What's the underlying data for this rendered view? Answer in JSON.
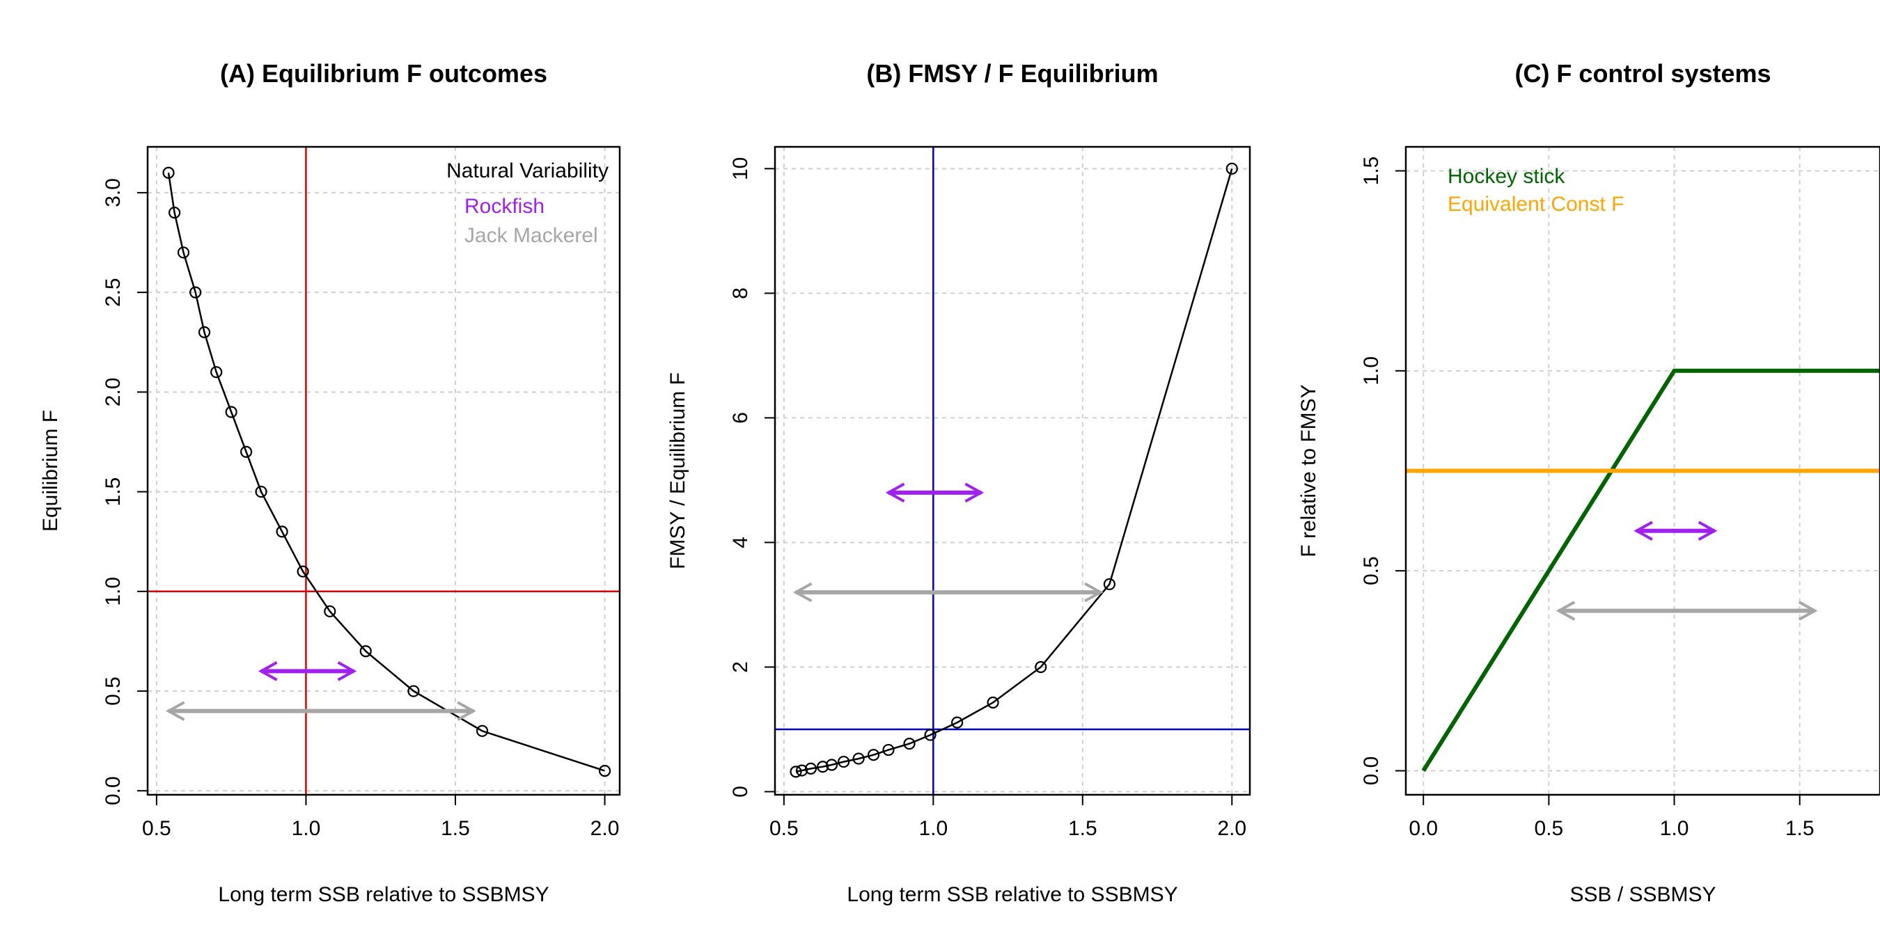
{
  "chart_data": [
    {
      "type": "line",
      "title": "(A) Equilibrium F outcomes",
      "xlabel": "Long term SSB relative to SSBMSY",
      "ylabel": "Equilibrium F",
      "xlim": [
        0.47,
        2.05
      ],
      "ylim": [
        -0.02,
        3.23
      ],
      "xticks": [
        0.5,
        1.0,
        1.5,
        2.0
      ],
      "xtick_labels": [
        "0.5",
        "1.0",
        "1.5",
        "2.0"
      ],
      "yticks": [
        0.0,
        0.5,
        1.0,
        1.5,
        2.0,
        2.5,
        3.0
      ],
      "ytick_labels": [
        "0.0",
        "0.5",
        "1.0",
        "1.5",
        "2.0",
        "2.5",
        "3.0"
      ],
      "grid": true,
      "series": [
        {
          "color": "#000000",
          "markers": true,
          "x": [
            0.54,
            0.56,
            0.59,
            0.63,
            0.66,
            0.7,
            0.75,
            0.8,
            0.85,
            0.92,
            0.99,
            1.08,
            1.2,
            1.36,
            1.59,
            2.0
          ],
          "y": [
            3.1,
            2.9,
            2.7,
            2.5,
            2.3,
            2.1,
            1.9,
            1.7,
            1.5,
            1.3,
            1.1,
            0.9,
            0.7,
            0.5,
            0.3,
            0.1
          ]
        }
      ],
      "vlines": [
        {
          "x": 1.0,
          "color": "#e00000"
        }
      ],
      "hlines": [
        {
          "y": 1.0,
          "color": "#e00000"
        }
      ],
      "ranges": [
        {
          "x1": 0.85,
          "x2": 1.16,
          "y": 0.6,
          "color": "#a020f0"
        },
        {
          "x1": 0.54,
          "x2": 1.56,
          "y": 0.4,
          "color": "#a6a6a6"
        }
      ],
      "legend": {
        "position": "top-right",
        "title": "Natural Variability",
        "items": [
          {
            "label": "Rockfish",
            "color": "#a020f0"
          },
          {
            "label": "Jack Mackerel",
            "color": "#a6a6a6"
          }
        ]
      }
    },
    {
      "type": "line",
      "title": "(B) FMSY / F Equilibrium",
      "xlabel": "Long term SSB relative to SSBMSY",
      "ylabel": "FMSY / Equilibrium F",
      "xlim": [
        0.47,
        2.06
      ],
      "ylim": [
        -0.05,
        10.35
      ],
      "xticks": [
        0.5,
        1.0,
        1.5,
        2.0
      ],
      "xtick_labels": [
        "0.5",
        "1.0",
        "1.5",
        "2.0"
      ],
      "yticks": [
        0,
        2,
        4,
        6,
        8,
        10
      ],
      "ytick_labels": [
        "0",
        "2",
        "4",
        "6",
        "8",
        "10"
      ],
      "grid": true,
      "series": [
        {
          "color": "#000000",
          "markers": true,
          "x": [
            0.54,
            0.56,
            0.59,
            0.63,
            0.66,
            0.7,
            0.75,
            0.8,
            0.85,
            0.92,
            0.99,
            1.08,
            1.2,
            1.36,
            1.59,
            2.0
          ],
          "y": [
            0.32,
            0.34,
            0.37,
            0.4,
            0.43,
            0.48,
            0.53,
            0.59,
            0.67,
            0.77,
            0.91,
            1.11,
            1.43,
            2.0,
            3.33,
            10.0
          ]
        }
      ],
      "vlines": [
        {
          "x": 1.0,
          "color": "#0000cc"
        }
      ],
      "hlines": [
        {
          "y": 1.0,
          "color": "#0000cc"
        }
      ],
      "ranges": [
        {
          "x1": 0.85,
          "x2": 1.16,
          "y": 4.8,
          "color": "#a020f0"
        },
        {
          "x1": 0.54,
          "x2": 1.56,
          "y": 3.2,
          "color": "#a6a6a6"
        }
      ]
    },
    {
      "type": "line",
      "title": "(C) F control systems",
      "xlabel": "SSB / SSBMSY",
      "ylabel": "F relative to FMSY",
      "xlim": [
        -0.07,
        1.82
      ],
      "ylim": [
        -0.06,
        1.56
      ],
      "xticks": [
        0.0,
        0.5,
        1.0,
        1.5
      ],
      "xtick_labels": [
        "0.0",
        "0.5",
        "1.0",
        "1.5"
      ],
      "yticks": [
        0.0,
        0.5,
        1.0,
        1.5
      ],
      "ytick_labels": [
        "0.0",
        "0.5",
        "1.0",
        "1.5"
      ],
      "grid": true,
      "series": [
        {
          "name": "Hockey stick",
          "color": "#006400",
          "markers": false,
          "x": [
            0.0,
            1.0,
            1.82
          ],
          "y": [
            0.0,
            1.0,
            1.0
          ]
        },
        {
          "name": "Equivalent Const F",
          "color": "#ffa500",
          "markers": false,
          "x": [
            -0.07,
            1.82
          ],
          "y": [
            0.75,
            0.75
          ]
        }
      ],
      "ranges": [
        {
          "x1": 0.85,
          "x2": 1.16,
          "y": 0.6,
          "color": "#a020f0"
        },
        {
          "x1": 0.54,
          "x2": 1.56,
          "y": 0.4,
          "color": "#a6a6a6"
        }
      ],
      "legend": {
        "position": "top-left",
        "items": [
          {
            "label": "Hockey stick",
            "color": "#006400"
          },
          {
            "label": "Equivalent Const F",
            "color": "#ffa500"
          }
        ]
      }
    }
  ]
}
